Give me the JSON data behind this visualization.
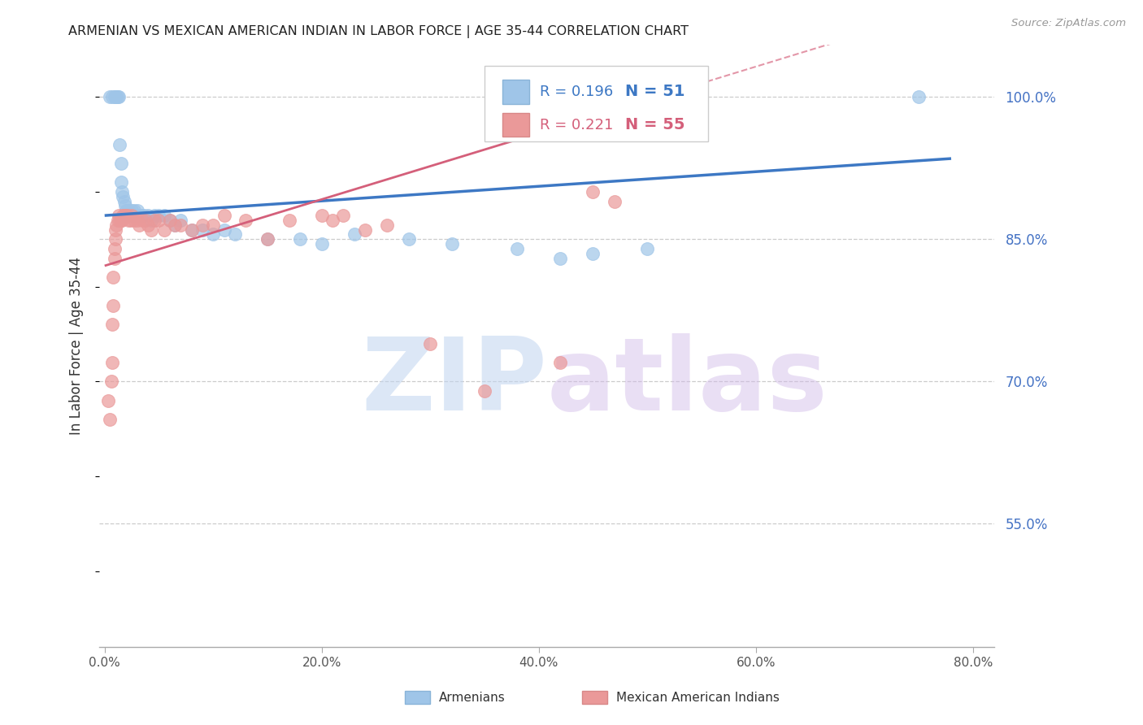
{
  "title": "ARMENIAN VS MEXICAN AMERICAN INDIAN IN LABOR FORCE | AGE 35-44 CORRELATION CHART",
  "source": "Source: ZipAtlas.com",
  "ylabel": "In Labor Force | Age 35-44",
  "xlim": [
    -0.005,
    0.82
  ],
  "ylim": [
    0.42,
    1.055
  ],
  "armenian_R": 0.196,
  "armenian_N": 51,
  "mexican_R": 0.221,
  "mexican_N": 55,
  "armenian_color": "#9fc5e8",
  "mexican_color": "#ea9999",
  "trendline_armenian_color": "#3d78c4",
  "trendline_mexican_color": "#d45f7a",
  "watermark_zip_color": "#a8c4e8",
  "watermark_atlas_color": "#b8a0d0",
  "legend_armenian": "Armenians",
  "legend_mexican": "Mexican American Indians",
  "ytick_vals": [
    0.55,
    0.7,
    0.85,
    1.0
  ],
  "ytick_labels": [
    "55.0%",
    "70.0%",
    "85.0%",
    "100.0%"
  ],
  "xtick_vals": [
    0.0,
    0.2,
    0.4,
    0.6,
    0.8
  ],
  "xtick_labels": [
    "0.0%",
    "20.0%",
    "40.0%",
    "60.0%",
    "80.0%"
  ],
  "grid_color": "#cccccc",
  "bg_color": "#ffffff",
  "title_color": "#222222",
  "right_tick_color": "#4472c4",
  "source_color": "#999999",
  "armenian_x": [
    0.005,
    0.007,
    0.009,
    0.01,
    0.011,
    0.012,
    0.013,
    0.014,
    0.015,
    0.015,
    0.016,
    0.017,
    0.018,
    0.019,
    0.02,
    0.02,
    0.021,
    0.022,
    0.023,
    0.025,
    0.026,
    0.027,
    0.028,
    0.03,
    0.032,
    0.034,
    0.036,
    0.04,
    0.043,
    0.046,
    0.05,
    0.055,
    0.06,
    0.065,
    0.07,
    0.08,
    0.09,
    0.1,
    0.11,
    0.12,
    0.15,
    0.18,
    0.2,
    0.23,
    0.28,
    0.32,
    0.38,
    0.42,
    0.45,
    0.5,
    0.75
  ],
  "armenian_y": [
    1.0,
    1.0,
    1.0,
    1.0,
    1.0,
    1.0,
    1.0,
    0.95,
    0.93,
    0.91,
    0.9,
    0.895,
    0.89,
    0.885,
    0.88,
    0.875,
    0.88,
    0.88,
    0.875,
    0.88,
    0.875,
    0.88,
    0.875,
    0.88,
    0.875,
    0.875,
    0.875,
    0.875,
    0.87,
    0.875,
    0.875,
    0.875,
    0.87,
    0.865,
    0.87,
    0.86,
    0.86,
    0.855,
    0.86,
    0.855,
    0.85,
    0.85,
    0.845,
    0.855,
    0.85,
    0.845,
    0.84,
    0.83,
    0.835,
    0.84,
    1.0
  ],
  "mexican_x": [
    0.003,
    0.005,
    0.006,
    0.007,
    0.007,
    0.008,
    0.008,
    0.009,
    0.009,
    0.01,
    0.01,
    0.011,
    0.012,
    0.013,
    0.014,
    0.015,
    0.016,
    0.017,
    0.018,
    0.019,
    0.02,
    0.021,
    0.022,
    0.024,
    0.025,
    0.027,
    0.03,
    0.032,
    0.035,
    0.038,
    0.04,
    0.043,
    0.046,
    0.05,
    0.055,
    0.06,
    0.065,
    0.07,
    0.08,
    0.09,
    0.1,
    0.11,
    0.13,
    0.15,
    0.17,
    0.2,
    0.21,
    0.22,
    0.24,
    0.26,
    0.3,
    0.35,
    0.42,
    0.45,
    0.47
  ],
  "mexican_y": [
    0.68,
    0.66,
    0.7,
    0.72,
    0.76,
    0.78,
    0.81,
    0.83,
    0.84,
    0.85,
    0.86,
    0.865,
    0.87,
    0.875,
    0.87,
    0.87,
    0.87,
    0.875,
    0.875,
    0.875,
    0.875,
    0.875,
    0.87,
    0.87,
    0.875,
    0.87,
    0.87,
    0.865,
    0.87,
    0.87,
    0.865,
    0.86,
    0.87,
    0.87,
    0.86,
    0.87,
    0.865,
    0.865,
    0.86,
    0.865,
    0.865,
    0.875,
    0.87,
    0.85,
    0.87,
    0.875,
    0.87,
    0.875,
    0.86,
    0.865,
    0.74,
    0.69,
    0.72,
    0.9,
    0.89
  ]
}
